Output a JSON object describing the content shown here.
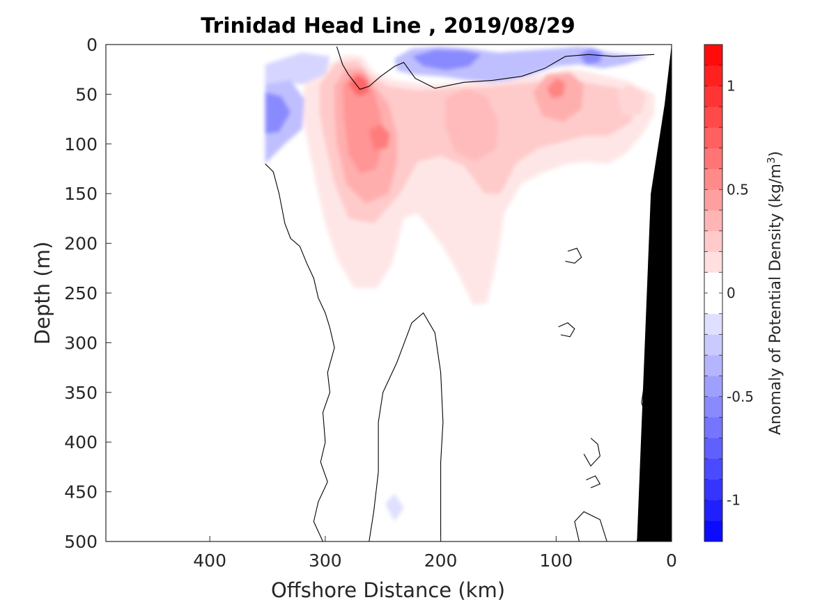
{
  "chart_data": {
    "type": "heatmap",
    "title": "Trinidad Head Line , 2019/08/29",
    "xlabel": "Offshore Distance (km)",
    "ylabel": "Depth (m)",
    "xlim": [
      490,
      0
    ],
    "ylim": [
      0,
      500
    ],
    "x_ticks": [
      400,
      300,
      200,
      100,
      0
    ],
    "y_ticks": [
      0,
      50,
      100,
      150,
      200,
      250,
      300,
      350,
      400,
      450,
      500
    ],
    "colorbar": {
      "label": "Anomaly of Potential Density (kg/m",
      "label_unit_exponent": "3",
      "label_close": ")",
      "range": [
        -1.2,
        1.2
      ],
      "step": 0.1,
      "ticks": [
        -1,
        -0.5,
        0,
        0.5,
        1
      ],
      "tick_labels": [
        "-1",
        "-0.5",
        "0",
        "0.5",
        "1"
      ],
      "colormap": "blue-white-red"
    },
    "features": [
      {
        "name": "surface-negative-anomaly",
        "x": [
          350,
          320,
          290,
          260,
          230,
          200,
          190,
          150,
          120,
          90,
          70,
          40,
          15
        ],
        "peak_value": -0.6
      },
      {
        "name": "offshore-negative-anomaly",
        "x_km": 338,
        "depth_m": 65,
        "peak_value": -0.55
      },
      {
        "name": "positive-core-1",
        "x_km": 270,
        "depth_m": 38,
        "peak_value": 0.75
      },
      {
        "name": "positive-core-2",
        "x_km": 250,
        "depth_m": 95,
        "peak_value": 0.6
      },
      {
        "name": "positive-core-3",
        "x_km": 170,
        "depth_m": 80,
        "peak_value": 0.4
      },
      {
        "name": "positive-core-4",
        "x_km": 100,
        "depth_m": 42,
        "peak_value": 0.55
      }
    ],
    "data_extent_km": [
      352,
      0
    ],
    "bathymetry_color": "#000000",
    "contour_color": "#000000",
    "grid": false,
    "colors": {
      "positive_max": "#ff0000",
      "negative_max": "#0000ff",
      "zero": "#ffffff"
    }
  }
}
